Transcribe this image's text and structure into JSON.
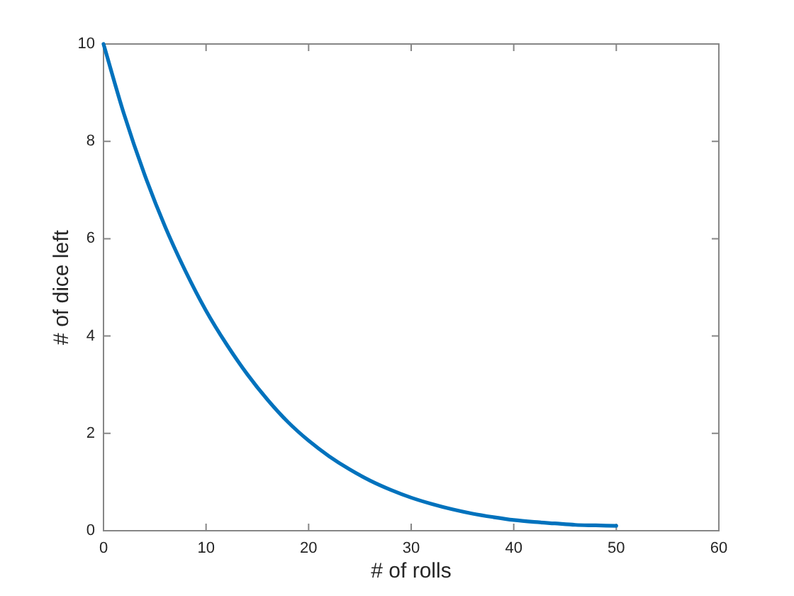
{
  "chart_data": {
    "type": "line",
    "xlabel": "# of rolls",
    "ylabel": "# of dice left",
    "x": [
      0,
      2,
      4,
      6,
      8,
      10,
      12,
      14,
      16,
      18,
      20,
      22,
      24,
      26,
      28,
      30,
      32,
      34,
      36,
      38,
      40,
      42,
      44,
      46,
      48,
      50
    ],
    "series": [
      {
        "color": "#0072bd",
        "values": [
          10,
          8.56,
          7.32,
          6.25,
          5.33,
          4.52,
          3.83,
          3.22,
          2.69,
          2.23,
          1.85,
          1.53,
          1.26,
          1.03,
          0.84,
          0.68,
          0.55,
          0.44,
          0.35,
          0.28,
          0.22,
          0.18,
          0.15,
          0.12,
          0.11,
          0.1
        ]
      }
    ],
    "xlim": [
      0,
      60
    ],
    "xticks": [
      0,
      10,
      20,
      30,
      40,
      50,
      60
    ],
    "ylim": [
      0,
      10
    ],
    "yticks": [
      0,
      2,
      4,
      6,
      8,
      10
    ]
  }
}
